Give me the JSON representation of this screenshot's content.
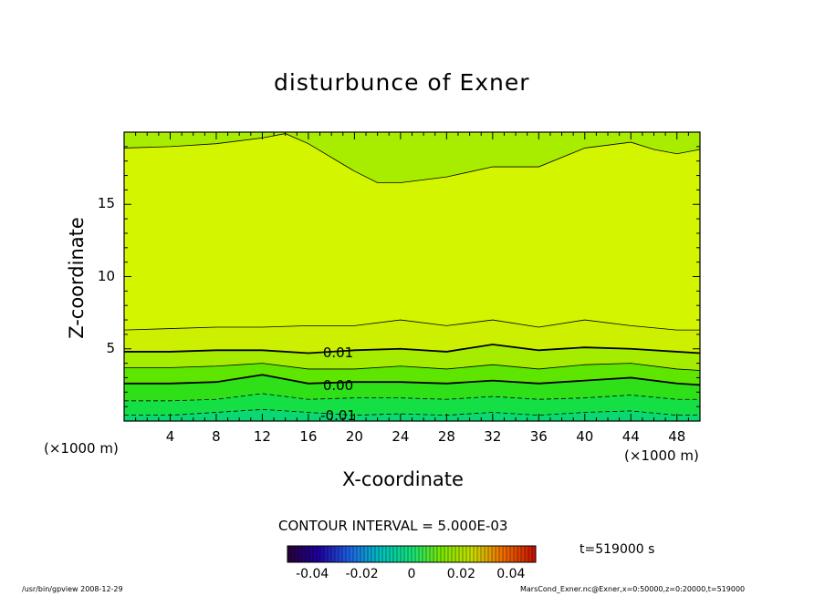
{
  "chart_data": {
    "type": "contour",
    "title": "disturbunce of Exner",
    "xlabel": "X-coordinate",
    "ylabel": "Z-coordinate",
    "x_unit_label": "(×1000 m)",
    "x_unit_label_right": "(×1000 m)",
    "xlim": [
      0,
      50
    ],
    "ylim": [
      0,
      20
    ],
    "xticks": [
      4,
      8,
      12,
      16,
      20,
      24,
      28,
      32,
      36,
      40,
      44,
      48
    ],
    "yticks": [
      5,
      10,
      15
    ],
    "contour_interval_label": "CONTOUR INTERVAL = 5.000E-03",
    "contour_labels": [
      {
        "text": "0.01",
        "x": 17,
        "z": 4.7
      },
      {
        "text": "0.00",
        "x": 17,
        "z": 2.4
      },
      {
        "text": "-0.01",
        "x": 17,
        "z": 0.3
      }
    ],
    "colorbar": {
      "range": [
        -0.05,
        0.05
      ],
      "ticks": [
        "-0.04",
        "-0.02",
        "0",
        "0.02",
        "0.04"
      ]
    },
    "time_label": "t=519000 s",
    "contours": [
      {
        "level": 0.015,
        "style": "thin",
        "x": [
          0,
          4,
          8,
          12,
          16,
          20,
          24,
          28,
          32,
          36,
          40,
          44,
          48,
          50
        ],
        "z": [
          6.3,
          6.4,
          6.5,
          6.5,
          6.6,
          6.6,
          7.0,
          6.6,
          7.0,
          6.5,
          7.0,
          6.6,
          6.3,
          6.3
        ]
      },
      {
        "level": 0.01,
        "style": "thick",
        "x": [
          0,
          4,
          8,
          12,
          16,
          20,
          24,
          28,
          32,
          36,
          40,
          44,
          48,
          50
        ],
        "z": [
          4.8,
          4.8,
          4.9,
          4.9,
          4.7,
          4.9,
          5.0,
          4.8,
          5.3,
          4.9,
          5.1,
          5.0,
          4.8,
          4.7
        ]
      },
      {
        "level": 0.005,
        "style": "thin",
        "x": [
          0,
          4,
          8,
          12,
          16,
          20,
          24,
          28,
          32,
          36,
          40,
          44,
          48,
          50
        ],
        "z": [
          3.7,
          3.7,
          3.8,
          4.0,
          3.6,
          3.6,
          3.8,
          3.6,
          3.9,
          3.6,
          3.9,
          4.0,
          3.6,
          3.5
        ]
      },
      {
        "level": 0.0,
        "style": "thick",
        "x": [
          0,
          4,
          8,
          12,
          16,
          20,
          24,
          28,
          32,
          36,
          40,
          44,
          48,
          50
        ],
        "z": [
          2.6,
          2.6,
          2.7,
          3.2,
          2.6,
          2.7,
          2.7,
          2.6,
          2.8,
          2.6,
          2.8,
          3.0,
          2.6,
          2.5
        ]
      },
      {
        "level": -0.005,
        "style": "dashed",
        "x": [
          0,
          4,
          8,
          12,
          16,
          20,
          24,
          28,
          32,
          36,
          40,
          44,
          48,
          50
        ],
        "z": [
          1.4,
          1.4,
          1.5,
          1.9,
          1.5,
          1.6,
          1.6,
          1.5,
          1.7,
          1.5,
          1.6,
          1.8,
          1.5,
          1.5
        ]
      },
      {
        "level": -0.01,
        "style": "dashed",
        "x": [
          0,
          4,
          8,
          12,
          16,
          20,
          24,
          28,
          32,
          36,
          40,
          44,
          48,
          50
        ],
        "z": [
          0.4,
          0.4,
          0.6,
          0.8,
          0.6,
          0.4,
          0.5,
          0.4,
          0.6,
          0.4,
          0.6,
          0.7,
          0.4,
          0.4
        ]
      },
      {
        "level": 0.02,
        "style": "thin",
        "x": [
          0,
          4,
          8,
          12,
          14,
          16,
          20,
          22,
          24,
          28,
          32,
          36,
          40,
          44,
          46,
          48,
          50
        ],
        "z": [
          18.9,
          19.0,
          19.2,
          19.6,
          19.9,
          19.2,
          17.3,
          16.5,
          16.5,
          16.9,
          17.6,
          17.6,
          18.9,
          19.3,
          18.8,
          18.5,
          18.8
        ]
      }
    ],
    "fill_bands": [
      {
        "level": 0.015,
        "color": "#ccf000"
      },
      {
        "level": 0.01,
        "color": "#a6ec00"
      },
      {
        "level": 0.005,
        "color": "#5fe600"
      },
      {
        "level": 0.0,
        "color": "#2fe018"
      },
      {
        "level": -0.005,
        "color": "#14e046"
      },
      {
        "level": -0.01,
        "color": "#0ad870"
      }
    ],
    "main_fill_color": "#d4f500",
    "top_fill_color": "#a8ed00"
  },
  "footer": {
    "left": "/usr/bin/gpview   2008-12-29",
    "right": "MarsCond_Exner.nc@Exner,x=0:50000,z=0:20000,t=519000"
  }
}
